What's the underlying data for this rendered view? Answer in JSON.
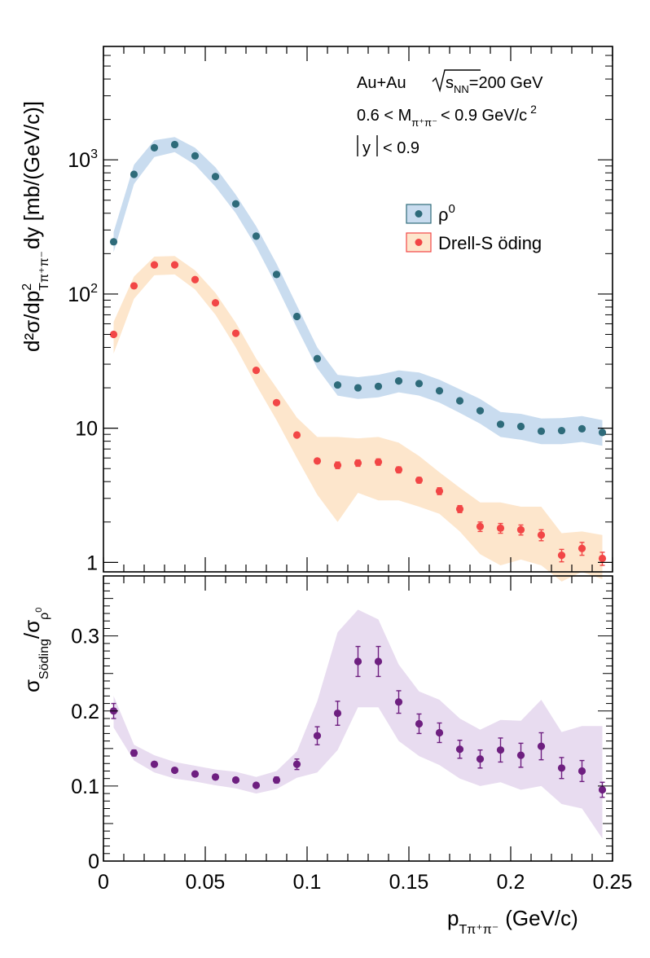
{
  "annotations": {
    "collision": "Au+Au",
    "energy_sqrt": "s",
    "energy_sub": "NN",
    "energy_value": "=200 GeV",
    "mass_prefix": "0.6 < M",
    "mass_sub": "π⁺π⁻",
    "mass_suffix": "< 0.9 GeV/c",
    "mass_sup": "2",
    "rapidity_y": "y",
    "rapidity_cut": "< 0.9"
  },
  "axes": {
    "top_ylabel_main": "d²σ/dp",
    "top_ylabel_sup": "2",
    "top_ylabel_sub": "Tπ⁺π⁻",
    "top_ylabel_tail": "dy [mb/(GeV/c)]",
    "bottom_ylabel_sigma1": "σ",
    "bottom_ylabel_sub1": "Söding",
    "bottom_ylabel_slash": "/σ",
    "bottom_ylabel_sub2": "ρ",
    "bottom_ylabel_sup2": "0",
    "xlabel_p": "p",
    "xlabel_sub": "Tπ⁺π⁻",
    "xlabel_unit": "(GeV/c)"
  },
  "legend": {
    "rho_label": "ρ",
    "rho_sup": "0",
    "ds_label": "Drell-S öding"
  },
  "colors": {
    "rho_marker": "#2e6b7a",
    "rho_band": "#c9dcef",
    "ds_marker": "#f24646",
    "ds_band": "#fde6cc",
    "ratio_marker": "#6e1f80",
    "ratio_band": "#e8dcf0"
  },
  "chart_data": [
    {
      "type": "scatter",
      "panel": "top",
      "x_scale": "linear",
      "y_scale": "log",
      "xlim": [
        0,
        0.25
      ],
      "ylim": [
        0.85,
        7000
      ],
      "x_ticks": [
        "0",
        "0.05",
        "0.1",
        "0.15",
        "0.2",
        "0.25"
      ],
      "y_ticks": [
        {
          "value": 1,
          "label": "1"
        },
        {
          "value": 10,
          "label": "10"
        },
        {
          "value": 100,
          "label": "10",
          "sup": "2"
        },
        {
          "value": 1000,
          "label": "10",
          "sup": "3"
        }
      ],
      "x": [
        0.005,
        0.015,
        0.025,
        0.035,
        0.045,
        0.055,
        0.065,
        0.075,
        0.085,
        0.095,
        0.105,
        0.115,
        0.125,
        0.135,
        0.145,
        0.155,
        0.165,
        0.175,
        0.185,
        0.195,
        0.205,
        0.215,
        0.225,
        0.235,
        0.245
      ],
      "series": [
        {
          "name": "ρ0",
          "values": [
            245,
            780,
            1230,
            1300,
            1070,
            750,
            470,
            270,
            140,
            68,
            33,
            21,
            20,
            20.5,
            22.5,
            21.5,
            19,
            16,
            13.5,
            10.7,
            10.3,
            9.5,
            9.6,
            9.9,
            9.3
          ],
          "band_low": [
            205,
            660,
            1050,
            1140,
            920,
            630,
            400,
            225,
            115,
            56,
            28,
            17.5,
            16.5,
            17,
            18.5,
            17.5,
            15.5,
            13,
            10.8,
            8.6,
            8.2,
            7.6,
            7.6,
            7.9,
            7.4
          ],
          "band_high": [
            290,
            920,
            1400,
            1480,
            1230,
            880,
            550,
            320,
            168,
            82,
            40,
            25,
            24,
            25,
            27,
            26,
            23,
            19.5,
            16.5,
            13.2,
            12.8,
            11.8,
            11.9,
            12.3,
            11.5
          ]
        },
        {
          "name": "Drell-S öding",
          "values": [
            50,
            115,
            165,
            165,
            128,
            86,
            51,
            27,
            15.5,
            8.9,
            5.7,
            5.3,
            5.5,
            5.6,
            4.9,
            4.1,
            3.4,
            2.5,
            1.85,
            1.8,
            1.75,
            1.6,
            1.13,
            1.27,
            1.07
          ],
          "errors": [
            0,
            0,
            0,
            0,
            0,
            0,
            0,
            0,
            0,
            0,
            0,
            0.3,
            0.3,
            0.3,
            0.25,
            0.2,
            0.2,
            0.15,
            0.15,
            0.15,
            0.15,
            0.15,
            0.12,
            0.14,
            0.12
          ],
          "band_low": [
            36,
            92,
            138,
            140,
            108,
            70,
            40,
            21,
            11.5,
            6.0,
            3.2,
            2.0,
            3.3,
            2.9,
            2.9,
            2.6,
            2.3,
            1.7,
            1.15,
            0.95,
            1.05,
            0.95,
            0.72,
            0.85,
            0.75
          ],
          "band_high": [
            62,
            135,
            190,
            192,
            150,
            102,
            61,
            33,
            20,
            12,
            8.6,
            8.6,
            8.4,
            8.6,
            7.8,
            6.2,
            4.7,
            3.6,
            2.8,
            2.8,
            2.6,
            2.6,
            1.65,
            1.7,
            1.6
          ]
        }
      ]
    },
    {
      "type": "scatter",
      "panel": "bottom",
      "x_scale": "linear",
      "y_scale": "linear",
      "xlim": [
        0,
        0.25
      ],
      "ylim": [
        0,
        0.38
      ],
      "x_ticks": [
        "0",
        "0.05",
        "0.1",
        "0.15",
        "0.2",
        "0.25"
      ],
      "y_ticks": [
        "0",
        "0.1",
        "0.2",
        "0.3"
      ],
      "x": [
        0.005,
        0.015,
        0.025,
        0.035,
        0.045,
        0.055,
        0.065,
        0.075,
        0.085,
        0.095,
        0.105,
        0.115,
        0.125,
        0.135,
        0.145,
        0.155,
        0.165,
        0.175,
        0.185,
        0.195,
        0.205,
        0.215,
        0.225,
        0.235,
        0.245
      ],
      "series": [
        {
          "name": "σSöding/σρ0",
          "values": [
            0.2,
            0.144,
            0.129,
            0.121,
            0.116,
            0.112,
            0.108,
            0.101,
            0.108,
            0.129,
            0.167,
            0.197,
            0.266,
            0.266,
            0.212,
            0.183,
            0.171,
            0.149,
            0.136,
            0.148,
            0.141,
            0.153,
            0.124,
            0.12,
            0.095
          ],
          "errors": [
            0.01,
            0.004,
            0.003,
            0.003,
            0.003,
            0.003,
            0.003,
            0.003,
            0.004,
            0.007,
            0.012,
            0.016,
            0.02,
            0.02,
            0.015,
            0.013,
            0.013,
            0.012,
            0.012,
            0.016,
            0.016,
            0.018,
            0.014,
            0.014,
            0.01
          ],
          "band_low": [
            0.178,
            0.134,
            0.118,
            0.11,
            0.106,
            0.101,
            0.097,
            0.09,
            0.096,
            0.111,
            0.118,
            0.148,
            0.205,
            0.205,
            0.16,
            0.14,
            0.128,
            0.11,
            0.1,
            0.105,
            0.095,
            0.1,
            0.076,
            0.07,
            0.03
          ],
          "band_high": [
            0.22,
            0.155,
            0.141,
            0.132,
            0.127,
            0.122,
            0.119,
            0.112,
            0.12,
            0.146,
            0.213,
            0.305,
            0.335,
            0.322,
            0.262,
            0.226,
            0.215,
            0.19,
            0.175,
            0.188,
            0.187,
            0.215,
            0.172,
            0.18,
            0.18
          ]
        }
      ]
    }
  ]
}
